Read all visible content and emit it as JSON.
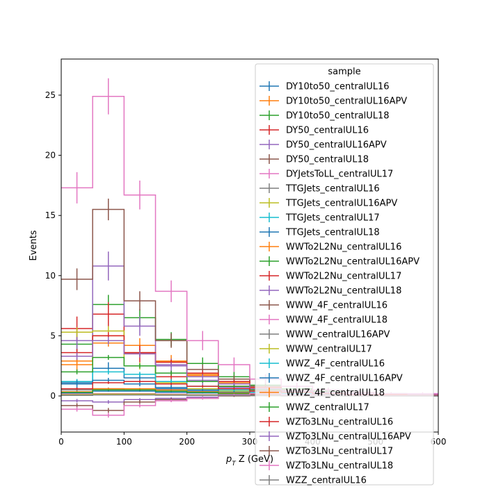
{
  "chart_data": {
    "type": "histogram-step",
    "xlabel_math": "p",
    "xlabel_sub": "T",
    "xlabel_rest": " Z (GeV)",
    "ylabel": "Events",
    "xlim": [
      0,
      600
    ],
    "ylim": [
      -3,
      28
    ],
    "xticks": [
      0,
      100,
      200,
      300,
      400,
      500,
      600
    ],
    "yticks": [
      0,
      5,
      10,
      15,
      20,
      25
    ],
    "bin_edges": [
      0,
      50,
      100,
      150,
      200,
      250,
      300,
      350,
      400,
      450,
      500,
      550,
      600
    ],
    "legend": {
      "title": "sample",
      "location": "upper-right"
    },
    "series": [
      {
        "name": "DY10to50_centralUL16",
        "color": "#1f77b4",
        "values": [
          1.0,
          2.3,
          1.5,
          0.6,
          0.4,
          0.3,
          0.2,
          0.1,
          0.1,
          0.1,
          0.05,
          0.05
        ],
        "errors": [
          0.4,
          0.5,
          0.4,
          0.3,
          0.2,
          0.2,
          0.1,
          0.1,
          0.1,
          0.1,
          0.05,
          0.05
        ]
      },
      {
        "name": "DY10to50_centralUL16APV",
        "color": "#ff7f0e",
        "values": [
          2.6,
          5.0,
          4.2,
          2.9,
          1.8,
          1.0,
          0.6,
          0.4,
          0.3,
          0.2,
          0.15,
          0.1
        ],
        "errors": [
          0.5,
          0.7,
          0.6,
          0.5,
          0.4,
          0.3,
          0.2,
          0.2,
          0.1,
          0.1,
          0.1,
          0.05
        ]
      },
      {
        "name": "DY10to50_centralUL18",
        "color": "#2ca02c",
        "values": [
          4.3,
          7.6,
          6.5,
          4.7,
          2.7,
          1.6,
          0.9,
          0.6,
          0.4,
          0.3,
          0.2,
          0.1
        ],
        "errors": [
          0.6,
          0.8,
          0.7,
          0.6,
          0.5,
          0.4,
          0.3,
          0.2,
          0.2,
          0.1,
          0.1,
          0.05
        ]
      },
      {
        "name": "DY50_centralUL16",
        "color": "#d62728",
        "values": [
          5.6,
          6.8,
          3.5,
          1.6,
          1.2,
          0.8,
          0.5,
          0.3,
          0.2,
          0.1,
          0.1,
          0.05
        ],
        "errors": [
          1.0,
          1.0,
          0.7,
          0.5,
          0.4,
          0.3,
          0.2,
          0.2,
          0.1,
          0.1,
          0.1,
          0.05
        ]
      },
      {
        "name": "DY50_centralUL16APV",
        "color": "#9467bd",
        "values": [
          4.6,
          10.8,
          5.8,
          2.5,
          1.3,
          0.7,
          0.4,
          0.3,
          0.2,
          0.1,
          0.1,
          0.05
        ],
        "errors": [
          0.8,
          1.2,
          0.8,
          0.6,
          0.4,
          0.3,
          0.2,
          0.2,
          0.1,
          0.1,
          0.1,
          0.05
        ]
      },
      {
        "name": "DY50_centralUL18",
        "color": "#8c564b",
        "values": [
          9.7,
          15.5,
          7.9,
          4.6,
          2.2,
          1.4,
          0.8,
          0.5,
          0.3,
          0.2,
          0.1,
          0.1
        ],
        "errors": [
          0.9,
          0.9,
          0.8,
          0.6,
          0.4,
          0.3,
          0.2,
          0.2,
          0.1,
          0.1,
          0.1,
          0.05
        ]
      },
      {
        "name": "DYJetsToLL_centralUL17",
        "color": "#e377c2",
        "values": [
          17.3,
          24.9,
          16.7,
          8.7,
          4.6,
          2.6,
          1.4,
          0.8,
          0.5,
          0.3,
          0.2,
          0.2
        ],
        "errors": [
          1.3,
          1.5,
          1.2,
          0.9,
          0.8,
          0.6,
          0.4,
          0.3,
          0.2,
          0.2,
          0.1,
          0.1
        ]
      },
      {
        "name": "TTGJets_centralUL16",
        "color": "#7f7f7f",
        "values": [
          0.5,
          0.6,
          0.5,
          0.4,
          0.3,
          0.2,
          0.1,
          0.1,
          0.05,
          0.05,
          0.02,
          0.02
        ],
        "errors": [
          0.1,
          0.1,
          0.1,
          0.1,
          0.1,
          0.05,
          0.05,
          0.05,
          0.02,
          0.02,
          0.01,
          0.01
        ]
      },
      {
        "name": "TTGJets_centralUL16APV",
        "color": "#bcbd22",
        "values": [
          5.3,
          5.4,
          2.5,
          1.1,
          0.6,
          0.4,
          0.2,
          0.1,
          0.1,
          0.05,
          0.05,
          0.02
        ],
        "errors": [
          0.4,
          0.4,
          0.3,
          0.2,
          0.1,
          0.1,
          0.05,
          0.05,
          0.05,
          0.02,
          0.02,
          0.01
        ]
      },
      {
        "name": "TTGJets_centralUL17",
        "color": "#17becf",
        "values": [
          1.2,
          2.0,
          1.8,
          1.2,
          0.8,
          0.5,
          0.3,
          0.2,
          0.1,
          0.1,
          0.05,
          0.05
        ],
        "errors": [
          0.2,
          0.2,
          0.2,
          0.2,
          0.1,
          0.1,
          0.1,
          0.05,
          0.05,
          0.05,
          0.02,
          0.02
        ]
      },
      {
        "name": "TTGJets_centralUL18",
        "color": "#1f77b4",
        "values": [
          1.1,
          1.3,
          1.0,
          0.7,
          0.5,
          0.3,
          0.2,
          0.1,
          0.1,
          0.05,
          0.05,
          0.02
        ],
        "errors": [
          0.2,
          0.2,
          0.2,
          0.1,
          0.1,
          0.1,
          0.05,
          0.05,
          0.05,
          0.02,
          0.02,
          0.01
        ]
      },
      {
        "name": "WWTo2L2Nu_centralUL16",
        "color": "#ff7f0e",
        "values": [
          2.9,
          4.4,
          3.6,
          2.8,
          1.7,
          1.1,
          0.7,
          0.4,
          0.3,
          0.2,
          0.1,
          0.1
        ],
        "errors": [
          0.2,
          0.3,
          0.3,
          0.2,
          0.2,
          0.1,
          0.1,
          0.1,
          0.05,
          0.05,
          0.05,
          0.02
        ]
      },
      {
        "name": "WWTo2L2Nu_centralUL16APV",
        "color": "#2ca02c",
        "values": [
          2.0,
          3.2,
          2.5,
          1.9,
          1.2,
          0.8,
          0.5,
          0.3,
          0.2,
          0.1,
          0.1,
          0.05
        ],
        "errors": [
          0.2,
          0.2,
          0.2,
          0.2,
          0.1,
          0.1,
          0.1,
          0.05,
          0.05,
          0.05,
          0.02,
          0.02
        ]
      },
      {
        "name": "WWTo2L2Nu_centralUL17",
        "color": "#d62728",
        "values": [
          3.6,
          5.0,
          3.6,
          2.8,
          1.9,
          1.2,
          0.7,
          0.4,
          0.3,
          0.2,
          0.1,
          0.1
        ],
        "errors": [
          0.3,
          0.3,
          0.3,
          0.2,
          0.2,
          0.1,
          0.1,
          0.1,
          0.05,
          0.05,
          0.05,
          0.02
        ]
      },
      {
        "name": "WWTo2L2Nu_centralUL18",
        "color": "#9467bd",
        "values": [
          3.3,
          4.6,
          3.5,
          2.6,
          1.6,
          1.0,
          0.6,
          0.4,
          0.3,
          0.2,
          0.1,
          0.1
        ],
        "errors": [
          0.3,
          0.3,
          0.3,
          0.2,
          0.2,
          0.1,
          0.1,
          0.1,
          0.05,
          0.05,
          0.05,
          0.02
        ]
      },
      {
        "name": "WWW_4F_centralUL16",
        "color": "#8c564b",
        "values": [
          0.1,
          0.15,
          0.15,
          0.1,
          0.1,
          0.05,
          0.05,
          0.02,
          0.02,
          0.01,
          0.01,
          0.01
        ],
        "errors": [
          0.02,
          0.03,
          0.03,
          0.02,
          0.02,
          0.01,
          0.01,
          0.01,
          0.01,
          0.005,
          0.005,
          0.005
        ]
      },
      {
        "name": "WWW_4F_centralUL18",
        "color": "#e377c2",
        "values": [
          0.15,
          0.2,
          0.2,
          0.15,
          0.1,
          0.08,
          0.05,
          0.03,
          0.02,
          0.01,
          0.01,
          0.01
        ],
        "errors": [
          0.03,
          0.03,
          0.03,
          0.03,
          0.02,
          0.02,
          0.01,
          0.01,
          0.01,
          0.005,
          0.005,
          0.005
        ]
      },
      {
        "name": "WWW_centralUL16APV",
        "color": "#7f7f7f",
        "values": [
          0.05,
          0.1,
          0.1,
          0.08,
          0.05,
          0.03,
          0.02,
          0.01,
          0.01,
          0.01,
          0.005,
          0.005
        ],
        "errors": [
          0.02,
          0.02,
          0.02,
          0.02,
          0.01,
          0.01,
          0.01,
          0.005,
          0.005,
          0.005,
          0.003,
          0.003
        ]
      },
      {
        "name": "WWW_centralUL17",
        "color": "#bcbd22",
        "values": [
          0.1,
          0.15,
          0.15,
          0.1,
          0.08,
          0.05,
          0.03,
          0.02,
          0.01,
          0.01,
          0.01,
          0.005
        ],
        "errors": [
          0.02,
          0.03,
          0.03,
          0.02,
          0.02,
          0.01,
          0.01,
          0.01,
          0.005,
          0.005,
          0.005,
          0.003
        ]
      },
      {
        "name": "WWZ_4F_centralUL16",
        "color": "#17becf",
        "values": [
          0.3,
          0.5,
          0.5,
          0.4,
          0.3,
          0.2,
          0.1,
          0.1,
          0.05,
          0.05,
          0.02,
          0.02
        ],
        "errors": [
          0.05,
          0.06,
          0.06,
          0.05,
          0.04,
          0.03,
          0.02,
          0.02,
          0.01,
          0.01,
          0.01,
          0.01
        ]
      },
      {
        "name": "WWZ_4F_centralUL16APV",
        "color": "#1f77b4",
        "values": [
          0.25,
          0.4,
          0.4,
          0.3,
          0.25,
          0.15,
          0.1,
          0.05,
          0.05,
          0.02,
          0.02,
          0.01
        ],
        "errors": [
          0.04,
          0.05,
          0.05,
          0.04,
          0.03,
          0.03,
          0.02,
          0.01,
          0.01,
          0.01,
          0.01,
          0.005
        ]
      },
      {
        "name": "WWZ_4F_centralUL18",
        "color": "#ff7f0e",
        "values": [
          0.35,
          0.6,
          0.6,
          0.5,
          0.35,
          0.25,
          0.15,
          0.1,
          0.05,
          0.05,
          0.03,
          0.02
        ],
        "errors": [
          0.05,
          0.07,
          0.07,
          0.06,
          0.05,
          0.04,
          0.03,
          0.02,
          0.01,
          0.01,
          0.01,
          0.01
        ]
      },
      {
        "name": "WWZ_centralUL17",
        "color": "#2ca02c",
        "values": [
          0.3,
          0.5,
          0.5,
          0.4,
          0.3,
          0.2,
          0.12,
          0.08,
          0.05,
          0.03,
          0.02,
          0.01
        ],
        "errors": [
          0.05,
          0.06,
          0.06,
          0.05,
          0.04,
          0.03,
          0.02,
          0.02,
          0.01,
          0.01,
          0.01,
          0.005
        ]
      },
      {
        "name": "WZTo3LNu_centralUL16",
        "color": "#d62728",
        "values": [
          0.6,
          1.1,
          1.2,
          1.0,
          0.8,
          0.6,
          0.4,
          0.3,
          0.2,
          0.1,
          0.1,
          0.05
        ],
        "errors": [
          0.1,
          0.1,
          0.1,
          0.1,
          0.1,
          0.08,
          0.06,
          0.05,
          0.04,
          0.03,
          0.02,
          0.02
        ]
      },
      {
        "name": "WZTo3LNu_centralUL16APV",
        "color": "#9467bd",
        "values": [
          -0.4,
          -0.5,
          -0.3,
          -0.2,
          -0.1,
          0.1,
          0.05,
          0.03,
          0.02,
          0.01,
          0.01,
          0.0
        ],
        "errors": [
          0.15,
          0.15,
          0.12,
          0.1,
          0.08,
          0.06,
          0.05,
          0.04,
          0.03,
          0.02,
          0.02,
          0.01
        ]
      },
      {
        "name": "WZTo3LNu_centralUL17",
        "color": "#8c564b",
        "values": [
          -0.8,
          -1.2,
          -0.5,
          -0.3,
          -0.2,
          0.0,
          0.1,
          0.05,
          0.03,
          0.02,
          0.01,
          0.01
        ],
        "errors": [
          0.2,
          0.2,
          0.15,
          0.12,
          0.1,
          0.08,
          0.06,
          0.05,
          0.04,
          0.03,
          0.02,
          0.02
        ]
      },
      {
        "name": "WZTo3LNu_centralUL18",
        "color": "#e377c2",
        "values": [
          -1.1,
          -1.6,
          -0.8,
          -0.4,
          -0.2,
          0.1,
          0.2,
          0.1,
          0.05,
          0.03,
          0.02,
          0.01
        ],
        "errors": [
          0.2,
          0.2,
          0.15,
          0.12,
          0.1,
          0.08,
          0.06,
          0.05,
          0.04,
          0.03,
          0.02,
          0.02
        ]
      },
      {
        "name": "WZZ_centralUL16",
        "color": "#7f7f7f",
        "values": [
          0.05,
          0.08,
          0.08,
          0.06,
          0.05,
          0.03,
          0.02,
          0.01,
          0.01,
          0.005,
          0.005,
          0.003
        ],
        "errors": [
          0.01,
          0.02,
          0.02,
          0.01,
          0.01,
          0.01,
          0.005,
          0.005,
          0.003,
          0.003,
          0.002,
          0.002
        ]
      }
    ]
  }
}
